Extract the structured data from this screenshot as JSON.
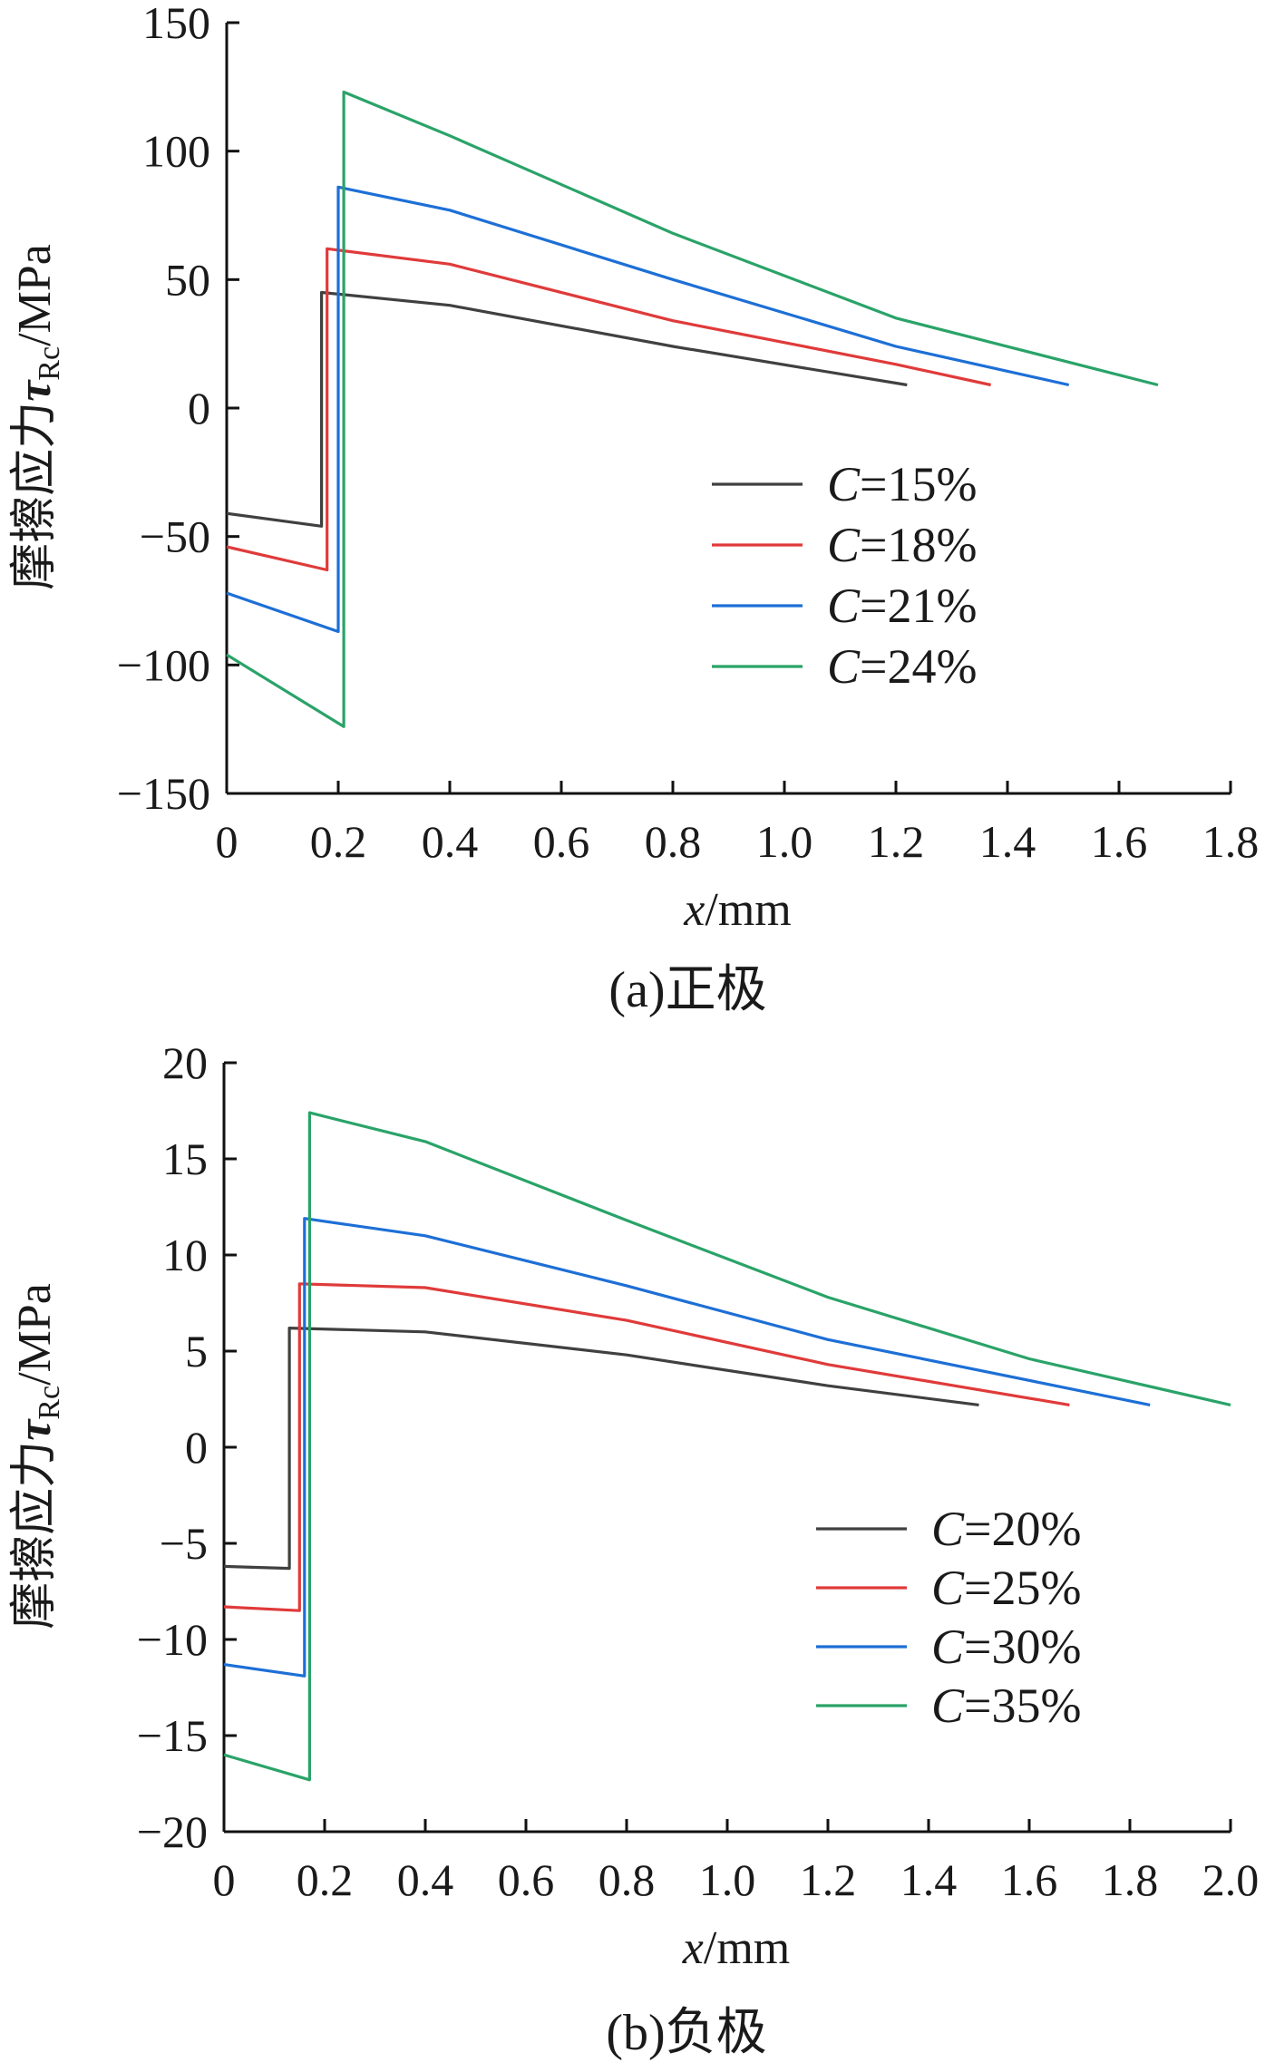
{
  "chart_data": [
    {
      "type": "line",
      "caption": "(a)正极",
      "xlabel": "x/mm",
      "xlabel_var": "x",
      "xlabel_unit": "/mm",
      "ylabel": "摩擦应力τRc/MPa",
      "ylabel_prefix": "摩擦应力",
      "ylabel_sym": "τ",
      "ylabel_sub": "Rc",
      "ylabel_unit": "/MPa",
      "xlim": [
        0,
        1.8
      ],
      "ylim": [
        -150,
        150
      ],
      "xticks": [
        "0",
        "0.2",
        "0.4",
        "0.6",
        "0.8",
        "1.0",
        "1.2",
        "1.4",
        "1.6",
        "1.8"
      ],
      "xtick_values": [
        0,
        0.2,
        0.4,
        0.6,
        0.8,
        1.0,
        1.2,
        1.4,
        1.6,
        1.8
      ],
      "yticks": [
        "150",
        "100",
        "50",
        "0",
        "−50",
        "−100",
        "−150"
      ],
      "ytick_values": [
        150,
        100,
        50,
        0,
        -50,
        -100,
        -150
      ],
      "legend_position": "center-right",
      "series": [
        {
          "name": "C=15%",
          "var": "C",
          "val": "=15%",
          "color": "#404040",
          "points": [
            [
              0,
              -41
            ],
            [
              0.17,
              -46
            ],
            [
              0.17,
              45
            ],
            [
              0.4,
              40
            ],
            [
              0.8,
              24
            ],
            [
              1.22,
              9
            ]
          ]
        },
        {
          "name": "C=18%",
          "var": "C",
          "val": "=18%",
          "color": "#e03a3a",
          "points": [
            [
              0,
              -54
            ],
            [
              0.18,
              -63
            ],
            [
              0.18,
              62
            ],
            [
              0.4,
              56
            ],
            [
              0.8,
              34
            ],
            [
              1.2,
              17
            ],
            [
              1.37,
              9
            ]
          ]
        },
        {
          "name": "C=21%",
          "var": "C",
          "val": "=21%",
          "color": "#1d6fd6",
          "points": [
            [
              0,
              -72
            ],
            [
              0.2,
              -87
            ],
            [
              0.2,
              86
            ],
            [
              0.4,
              77
            ],
            [
              0.8,
              50
            ],
            [
              1.2,
              24
            ],
            [
              1.51,
              9
            ]
          ]
        },
        {
          "name": "C=24%",
          "var": "C",
          "val": "=24%",
          "color": "#2aa368",
          "points": [
            [
              0,
              -96
            ],
            [
              0.21,
              -124
            ],
            [
              0.21,
              123
            ],
            [
              0.4,
              106
            ],
            [
              0.8,
              68
            ],
            [
              1.2,
              35
            ],
            [
              1.67,
              9
            ]
          ]
        }
      ]
    },
    {
      "type": "line",
      "caption": "(b)负极",
      "xlabel": "x/mm",
      "xlabel_var": "x",
      "xlabel_unit": "/mm",
      "ylabel": "摩擦应力τRc/MPa",
      "ylabel_prefix": "摩擦应力",
      "ylabel_sym": "τ",
      "ylabel_sub": "Rc",
      "ylabel_unit": "/MPa",
      "xlim": [
        0,
        2.0
      ],
      "ylim": [
        -20,
        20
      ],
      "xticks": [
        "0",
        "0.2",
        "0.4",
        "0.6",
        "0.8",
        "1.0",
        "1.2",
        "1.4",
        "1.6",
        "1.8",
        "2.0"
      ],
      "xtick_values": [
        0,
        0.2,
        0.4,
        0.6,
        0.8,
        1.0,
        1.2,
        1.4,
        1.6,
        1.8,
        2.0
      ],
      "yticks": [
        "20",
        "15",
        "10",
        "5",
        "0",
        "−5",
        "−10",
        "−15",
        "−20"
      ],
      "ytick_values": [
        20,
        15,
        10,
        5,
        0,
        -5,
        -10,
        -15,
        -20
      ],
      "legend_position": "lower-right",
      "series": [
        {
          "name": "C=20%",
          "var": "C",
          "val": "=20%",
          "color": "#404040",
          "points": [
            [
              0,
              -6.2
            ],
            [
              0.13,
              -6.3
            ],
            [
              0.13,
              6.2
            ],
            [
              0.4,
              6.0
            ],
            [
              0.8,
              4.8
            ],
            [
              1.2,
              3.2
            ],
            [
              1.5,
              2.2
            ]
          ]
        },
        {
          "name": "C=25%",
          "var": "C",
          "val": "=25%",
          "color": "#e03a3a",
          "points": [
            [
              0,
              -8.3
            ],
            [
              0.15,
              -8.5
            ],
            [
              0.15,
              8.5
            ],
            [
              0.4,
              8.3
            ],
            [
              0.8,
              6.6
            ],
            [
              1.2,
              4.3
            ],
            [
              1.68,
              2.2
            ]
          ]
        },
        {
          "name": "C=30%",
          "var": "C",
          "val": "=30%",
          "color": "#1d6fd6",
          "points": [
            [
              0,
              -11.3
            ],
            [
              0.16,
              -11.9
            ],
            [
              0.16,
              11.9
            ],
            [
              0.4,
              11.0
            ],
            [
              0.8,
              8.4
            ],
            [
              1.2,
              5.6
            ],
            [
              1.84,
              2.2
            ]
          ]
        },
        {
          "name": "C=35%",
          "var": "C",
          "val": "=35%",
          "color": "#2aa368",
          "points": [
            [
              0,
              -16.0
            ],
            [
              0.17,
              -17.3
            ],
            [
              0.17,
              17.4
            ],
            [
              0.4,
              15.9
            ],
            [
              0.8,
              11.8
            ],
            [
              1.2,
              7.8
            ],
            [
              1.6,
              4.6
            ],
            [
              2.0,
              2.2
            ]
          ]
        }
      ]
    }
  ]
}
